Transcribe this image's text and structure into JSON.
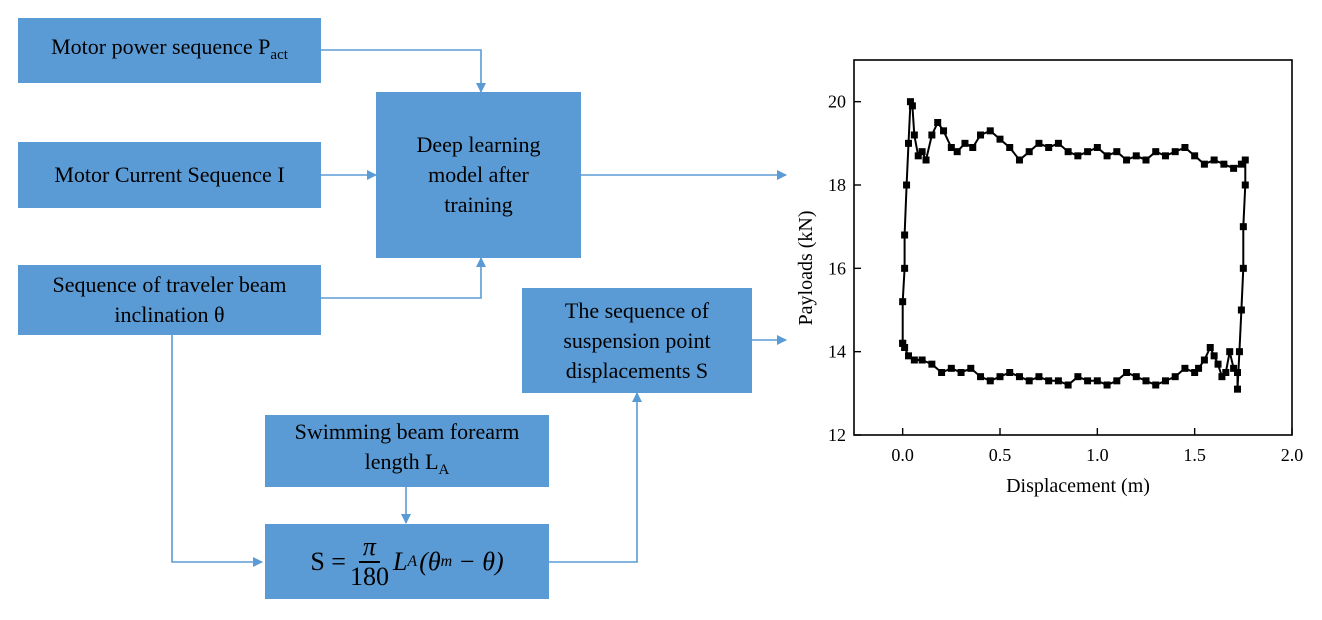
{
  "boxes": {
    "motor_power": {
      "text": "Motor power sequence P",
      "sub": "act"
    },
    "motor_current": {
      "text": "Motor Current Sequence I"
    },
    "traveler": {
      "line1": "Sequence of traveler beam",
      "line2": "inclination θ"
    },
    "deep_model": {
      "line1": "Deep learning",
      "line2": "model after",
      "line3": "training"
    },
    "suspension": {
      "line1": "The sequence of",
      "line2": "suspension point",
      "line3": "displacements S"
    },
    "forearm": {
      "line1": "Swimming beam forearm",
      "line2": "length L",
      "sub": "A"
    },
    "equation": {
      "lhs": "S =",
      "num": "π",
      "den": "180",
      "L": "L",
      "L_sub": "A",
      "paren_open": "(θ",
      "theta_sub": "m",
      "rest": "− θ)"
    }
  },
  "colors": {
    "box": "#5b9bd5",
    "arrow": "#5b9bd5",
    "plot": "#000000"
  },
  "chart_data": {
    "type": "line",
    "xlabel": "Displacement (m)",
    "ylabel": "Payloads (kN)",
    "xlim": [
      -0.25,
      2.0
    ],
    "ylim": [
      12,
      21
    ],
    "xticks": [
      "0.0",
      "0.5",
      "1.0",
      "1.5",
      "2.0"
    ],
    "yticks": [
      "12",
      "14",
      "16",
      "18",
      "20"
    ],
    "series": [
      {
        "x": [
          0.0,
          0.0,
          0.01,
          0.01,
          0.02,
          0.03,
          0.04,
          0.05,
          0.06,
          0.08,
          0.1,
          0.12,
          0.15,
          0.18,
          0.21,
          0.25,
          0.28,
          0.32,
          0.36,
          0.4,
          0.45,
          0.5,
          0.55,
          0.6,
          0.65,
          0.7,
          0.75,
          0.8,
          0.85,
          0.9,
          0.95,
          1.0,
          1.05,
          1.1,
          1.15,
          1.2,
          1.25,
          1.3,
          1.35,
          1.4,
          1.45,
          1.5,
          1.55,
          1.6,
          1.65,
          1.7,
          1.74,
          1.76,
          1.76,
          1.75,
          1.75,
          1.74,
          1.73,
          1.72,
          1.72,
          1.7,
          1.68,
          1.66,
          1.64,
          1.62,
          1.6,
          1.58,
          1.55,
          1.52,
          1.5,
          1.45,
          1.4,
          1.35,
          1.3,
          1.25,
          1.2,
          1.15,
          1.1,
          1.05,
          1.0,
          0.95,
          0.9,
          0.85,
          0.8,
          0.75,
          0.7,
          0.65,
          0.6,
          0.55,
          0.5,
          0.45,
          0.4,
          0.35,
          0.3,
          0.25,
          0.2,
          0.15,
          0.1,
          0.06,
          0.03,
          0.01,
          0.0
        ],
        "y": [
          14.2,
          15.2,
          16.0,
          16.8,
          18.0,
          19.0,
          20.0,
          19.9,
          19.2,
          18.7,
          18.8,
          18.6,
          19.2,
          19.5,
          19.3,
          18.9,
          18.8,
          19.0,
          18.9,
          19.2,
          19.3,
          19.1,
          18.9,
          18.6,
          18.8,
          19.0,
          18.9,
          19.0,
          18.8,
          18.7,
          18.8,
          18.9,
          18.7,
          18.8,
          18.6,
          18.7,
          18.6,
          18.8,
          18.7,
          18.8,
          18.9,
          18.7,
          18.5,
          18.6,
          18.5,
          18.4,
          18.5,
          18.6,
          18.0,
          17.0,
          16.0,
          15.0,
          14.0,
          13.1,
          13.5,
          13.6,
          14.0,
          13.5,
          13.4,
          13.7,
          13.9,
          14.1,
          13.8,
          13.6,
          13.5,
          13.6,
          13.4,
          13.3,
          13.2,
          13.3,
          13.4,
          13.5,
          13.3,
          13.2,
          13.3,
          13.3,
          13.4,
          13.2,
          13.3,
          13.3,
          13.4,
          13.3,
          13.4,
          13.5,
          13.4,
          13.3,
          13.4,
          13.6,
          13.5,
          13.6,
          13.5,
          13.7,
          13.8,
          13.8,
          13.9,
          14.1,
          14.2
        ]
      }
    ]
  }
}
